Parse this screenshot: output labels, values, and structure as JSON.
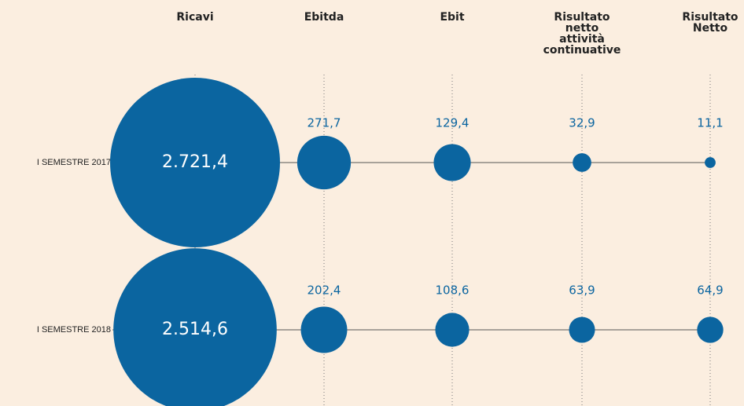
{
  "chart_data": {
    "type": "bubble",
    "categories": [
      "Ricavi",
      "Ebitda",
      "Ebit",
      "Risultato netto attività continuative",
      "Risultato Netto"
    ],
    "color": "#0b65a0",
    "series": [
      {
        "name": "I SEMESTRE 2017",
        "values": [
          2721.4,
          271.7,
          129.4,
          32.9,
          11.1
        ],
        "value_labels": [
          "2.721,4",
          "271,7",
          "129,4",
          "32,9",
          "11,1"
        ]
      },
      {
        "name": "I SEMESTRE 2018",
        "values": [
          2514.6,
          202.4,
          108.6,
          63.9,
          64.9
        ],
        "value_labels": [
          "2.514,6",
          "202,4",
          "108,6",
          "63,9",
          "64,9"
        ]
      }
    ]
  }
}
